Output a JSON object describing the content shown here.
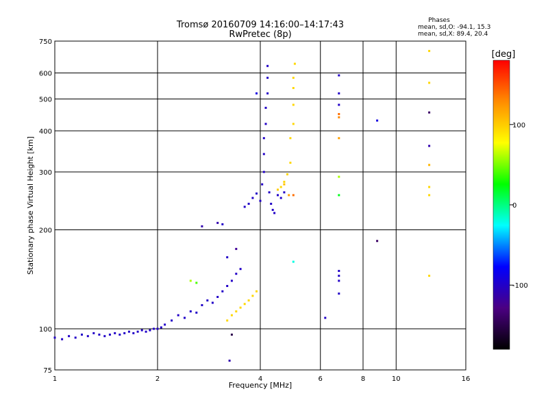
{
  "chart_data": {
    "type": "scatter",
    "title": "Tromsø 20160709 14:16:00–14:17:43",
    "subtitle": "RwPretec (8p)",
    "xlabel": "Frequency [MHz]",
    "ylabel": "Stationary phase Virtual Height [km]",
    "x_scale": "log",
    "y_scale": "log",
    "xlim": [
      1,
      16
    ],
    "ylim": [
      75,
      750
    ],
    "x_ticks": [
      1,
      2,
      4,
      6,
      8,
      10,
      16
    ],
    "x_tick_labels": [
      "1",
      "2",
      "4",
      "6",
      "8",
      "10",
      "16"
    ],
    "y_ticks": [
      75,
      100,
      200,
      300,
      400,
      500,
      600,
      750
    ],
    "y_tick_labels": [
      "75",
      "100",
      "200",
      "300",
      "400",
      "500",
      "600",
      "750"
    ],
    "grid": true,
    "phase_stats": {
      "heading": "Phases",
      "line_o": "mean, sd,O: -94.1, 15.3",
      "line_x": "mean, sd,X:  89.4, 20.4"
    },
    "colorbar": {
      "label": "[deg]",
      "range": [
        -180,
        180
      ],
      "ticks": [
        100,
        0,
        -100
      ],
      "tick_labels": [
        "100",
        "0",
        "-100"
      ],
      "stops": [
        "#000000",
        "#4b0082",
        "#0000ff",
        "#00ffff",
        "#00ff00",
        "#ffff00",
        "#ff8c00",
        "#ff0000"
      ]
    },
    "series": [
      {
        "points": [
          [
            1.0,
            94
          ],
          [
            1.05,
            93
          ],
          [
            1.1,
            95
          ],
          [
            1.15,
            94
          ],
          [
            1.2,
            96
          ],
          [
            1.25,
            95
          ],
          [
            1.3,
            97
          ],
          [
            1.35,
            96
          ],
          [
            1.4,
            95
          ],
          [
            1.45,
            96
          ],
          [
            1.5,
            97
          ],
          [
            1.55,
            96
          ],
          [
            1.6,
            97
          ],
          [
            1.65,
            98
          ],
          [
            1.7,
            97
          ],
          [
            1.75,
            98
          ],
          [
            1.8,
            99
          ],
          [
            1.85,
            98
          ],
          [
            1.9,
            99
          ],
          [
            1.95,
            100
          ],
          [
            2.0,
            100
          ],
          [
            2.05,
            101
          ],
          [
            2.1,
            103
          ],
          [
            2.2,
            106
          ],
          [
            2.3,
            110
          ],
          [
            2.4,
            108
          ],
          [
            2.5,
            113
          ],
          [
            2.6,
            112
          ],
          [
            2.7,
            118
          ],
          [
            2.8,
            122
          ],
          [
            2.9,
            120
          ],
          [
            3.0,
            125
          ],
          [
            3.1,
            130
          ],
          [
            3.2,
            135
          ],
          [
            3.3,
            140
          ],
          [
            3.4,
            147
          ],
          [
            3.5,
            152
          ],
          [
            3.2,
            165
          ],
          [
            3.4,
            175
          ],
          [
            2.7,
            205
          ],
          [
            3.0,
            210
          ],
          [
            3.1,
            208
          ],
          [
            3.6,
            235
          ],
          [
            3.7,
            240
          ],
          [
            3.8,
            250
          ],
          [
            3.9,
            258
          ],
          [
            4.0,
            245
          ],
          [
            4.05,
            275
          ],
          [
            4.1,
            300
          ],
          [
            4.1,
            340
          ],
          [
            4.1,
            380
          ],
          [
            4.15,
            420
          ],
          [
            4.15,
            470
          ],
          [
            4.2,
            520
          ],
          [
            4.2,
            580
          ],
          [
            4.2,
            630
          ],
          [
            4.25,
            260
          ],
          [
            4.3,
            240
          ],
          [
            4.35,
            230
          ],
          [
            4.4,
            225
          ],
          [
            4.5,
            255
          ],
          [
            4.6,
            250
          ],
          [
            4.7,
            260
          ],
          [
            3.9,
            520
          ],
          [
            6.8,
            590
          ],
          [
            6.8,
            520
          ],
          [
            6.8,
            480
          ],
          [
            6.8,
            150
          ],
          [
            6.8,
            145
          ],
          [
            6.8,
            140
          ],
          [
            6.8,
            128
          ],
          [
            8.8,
            430
          ],
          [
            8.8,
            185
          ],
          [
            12.5,
            455
          ],
          [
            12.5,
            360
          ],
          [
            6.2,
            108
          ],
          [
            3.3,
            96
          ],
          [
            3.25,
            80
          ]
        ],
        "phases": [
          -100,
          -100,
          -100,
          -100,
          -100,
          -100,
          -100,
          -100,
          -100,
          -100,
          -100,
          -100,
          -100,
          -100,
          -100,
          -100,
          -100,
          -100,
          -100,
          -100,
          -100,
          -100,
          -100,
          -100,
          -100,
          -100,
          -100,
          -100,
          -100,
          -100,
          -100,
          -100,
          -100,
          -100,
          -100,
          -100,
          -100,
          -100,
          -120,
          -110,
          -110,
          -100,
          -100,
          -100,
          -100,
          -100,
          -100,
          -100,
          -100,
          -100,
          -100,
          -100,
          -100,
          -100,
          -100,
          -100,
          -100,
          -100,
          -100,
          -100,
          -100,
          -100,
          -100,
          -90,
          -100,
          -100,
          -100,
          -100,
          -100,
          -100,
          -100,
          -90,
          -140,
          -140,
          -110,
          -100,
          -150,
          -110
        ]
      },
      {
        "points": [
          [
            3.2,
            106
          ],
          [
            3.3,
            110
          ],
          [
            3.4,
            113
          ],
          [
            3.5,
            116
          ],
          [
            3.6,
            119
          ],
          [
            3.7,
            122
          ],
          [
            3.8,
            126
          ],
          [
            3.9,
            130
          ],
          [
            4.6,
            270
          ],
          [
            4.7,
            280
          ],
          [
            4.8,
            295
          ],
          [
            4.9,
            320
          ],
          [
            4.9,
            380
          ],
          [
            5.0,
            420
          ],
          [
            5.0,
            480
          ],
          [
            5.0,
            540
          ],
          [
            5.0,
            580
          ],
          [
            5.05,
            640
          ],
          [
            4.5,
            265
          ],
          [
            4.7,
            275
          ],
          [
            4.85,
            255
          ],
          [
            5.0,
            255
          ],
          [
            6.8,
            450
          ],
          [
            6.8,
            440
          ],
          [
            6.8,
            380
          ],
          [
            6.8,
            290
          ],
          [
            6.8,
            255
          ],
          [
            12.5,
            700
          ],
          [
            12.5,
            560
          ],
          [
            12.5,
            315
          ],
          [
            12.5,
            270
          ],
          [
            12.5,
            255
          ],
          [
            12.5,
            145
          ],
          [
            5.0,
            160
          ],
          [
            2.5,
            140
          ],
          [
            2.6,
            138
          ]
        ],
        "phases": [
          95,
          95,
          95,
          95,
          95,
          95,
          95,
          95,
          95,
          95,
          95,
          95,
          95,
          95,
          95,
          95,
          95,
          95,
          100,
          105,
          120,
          140,
          140,
          130,
          120,
          60,
          20,
          95,
          95,
          110,
          95,
          95,
          95,
          -20,
          60,
          40
        ]
      }
    ]
  }
}
